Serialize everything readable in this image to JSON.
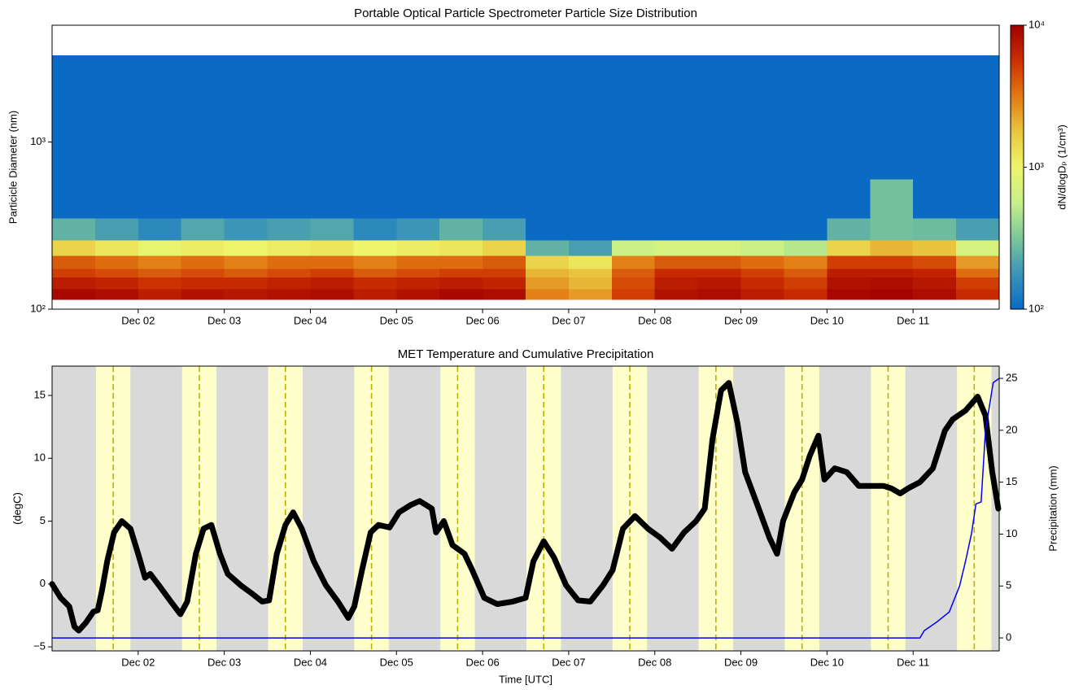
{
  "chart_data": [
    {
      "type": "heatmap",
      "title": "Portable Optical Particle Spectrometer Particle Size Distribution",
      "ylabel": "Particicle Diameter (nm)",
      "xlim": [
        1,
        12
      ],
      "xticks": [
        {
          "value": 2,
          "label": "Dec 02"
        },
        {
          "value": 3,
          "label": "Dec 03"
        },
        {
          "value": 4,
          "label": "Dec 04"
        },
        {
          "value": 5,
          "label": "Dec 05"
        },
        {
          "value": 6,
          "label": "Dec 06"
        },
        {
          "value": 7,
          "label": "Dec 07"
        },
        {
          "value": 8,
          "label": "Dec 08"
        },
        {
          "value": 9,
          "label": "Dec 09"
        },
        {
          "value": 10,
          "label": "Dec 10"
        },
        {
          "value": 11,
          "label": "Dec 11"
        }
      ],
      "yscale": "log",
      "ylim": [
        100,
        5000
      ],
      "yticks": [
        {
          "value": 100,
          "label": "10²"
        },
        {
          "value": 1000,
          "label": "10³"
        }
      ],
      "x_bins": [
        1,
        1.5,
        2,
        2.5,
        3,
        3.5,
        4,
        4.5,
        5,
        5.5,
        6,
        6.5,
        7,
        7.5,
        8,
        8.5,
        9,
        9.5,
        10,
        10.5,
        11,
        11.5,
        12
      ],
      "y_bins": [
        114,
        132,
        155,
        175,
        209,
        259,
        350,
        600,
        3300
      ],
      "values": [
        [
          9000,
          8500,
          7000,
          8000,
          7500,
          8000,
          8500,
          7000,
          8000,
          9000,
          8500,
          3000,
          2500,
          5000,
          8000,
          8500,
          7000,
          6000,
          9000,
          9500,
          8500,
          6000
        ],
        [
          7000,
          6500,
          5500,
          6000,
          6000,
          6500,
          7000,
          6000,
          6500,
          7000,
          6500,
          2500,
          2000,
          4500,
          7000,
          7500,
          6000,
          5000,
          8000,
          8500,
          7500,
          5000
        ],
        [
          5000,
          4500,
          4000,
          4500,
          4000,
          4500,
          5000,
          4000,
          4500,
          5000,
          5000,
          2000,
          1800,
          4000,
          6000,
          6000,
          5000,
          4000,
          7000,
          7000,
          6500,
          3500
        ],
        [
          4000,
          3500,
          3000,
          3500,
          3000,
          3500,
          3500,
          3000,
          3500,
          3500,
          4000,
          1500,
          1200,
          3000,
          4000,
          4000,
          3500,
          3000,
          5000,
          5000,
          4500,
          2500
        ],
        [
          1500,
          1200,
          900,
          1100,
          1000,
          1100,
          1200,
          1000,
          1100,
          1200,
          1500,
          250,
          200,
          600,
          700,
          700,
          600,
          500,
          1500,
          2000,
          1800,
          700
        ],
        [
          250,
          200,
          150,
          220,
          180,
          200,
          220,
          150,
          180,
          250,
          200,
          100,
          80,
          90,
          80,
          80,
          90,
          100,
          250,
          300,
          280,
          200
        ],
        [
          30,
          30,
          30,
          30,
          30,
          30,
          30,
          30,
          30,
          30,
          30,
          30,
          30,
          30,
          30,
          30,
          30,
          30,
          30,
          300,
          30,
          30
        ],
        [
          30,
          30,
          30,
          30,
          30,
          30,
          30,
          30,
          30,
          30,
          30,
          30,
          30,
          30,
          30,
          30,
          30,
          30,
          30,
          30,
          30,
          30
        ]
      ],
      "colorbar_label": "dN/dlogDₚ (1/cm³)",
      "cscale": "log",
      "clim": [
        100,
        10000
      ],
      "cticks": [
        {
          "value": 100,
          "label": "10²"
        },
        {
          "value": 1000,
          "label": "10³"
        },
        {
          "value": 10000,
          "label": "10⁴"
        }
      ],
      "colormap": [
        "#0a6ac4",
        "#3c94b8",
        "#7cc69a",
        "#c6ef8a",
        "#eef56a",
        "#e9c640",
        "#e27a14",
        "#cc2e00",
        "#a00000"
      ]
    },
    {
      "type": "line",
      "title": "MET Temperature and Cumulative Precipitation",
      "xlabel": "Time [UTC]",
      "ylabel": "(degC)",
      "y2label": "Precipitation (mm)",
      "xlim": [
        1,
        12
      ],
      "xticks": [
        {
          "value": 2,
          "label": "Dec 02"
        },
        {
          "value": 3,
          "label": "Dec 03"
        },
        {
          "value": 4,
          "label": "Dec 04"
        },
        {
          "value": 5,
          "label": "Dec 05"
        },
        {
          "value": 6,
          "label": "Dec 06"
        },
        {
          "value": 7,
          "label": "Dec 07"
        },
        {
          "value": 8,
          "label": "Dec 08"
        },
        {
          "value": 9,
          "label": "Dec 09"
        },
        {
          "value": 10,
          "label": "Dec 10"
        },
        {
          "value": 11,
          "label": "Dec 11"
        }
      ],
      "ylim": [
        -5.32,
        17.33
      ],
      "yticks": [
        {
          "value": -5,
          "label": "−5"
        },
        0,
        5,
        10,
        15
      ],
      "y2lim": [
        -1.25,
        26.18
      ],
      "y2ticks": [
        0,
        5,
        10,
        15,
        20,
        25
      ],
      "shading": {
        "night_color": "#d9d9d9",
        "day_color": "#ffffcc",
        "noon_color": "#bfb000",
        "day_spans": [
          [
            1.51,
            1.91
          ],
          [
            2.51,
            2.91
          ],
          [
            3.51,
            3.91
          ],
          [
            4.51,
            4.91
          ],
          [
            5.51,
            5.91
          ],
          [
            6.51,
            6.91
          ],
          [
            7.51,
            7.91
          ],
          [
            8.51,
            8.91
          ],
          [
            9.51,
            9.91
          ],
          [
            10.51,
            10.91
          ],
          [
            11.51,
            11.91
          ]
        ],
        "noon": [
          1.71,
          2.71,
          3.71,
          4.71,
          5.71,
          6.71,
          7.71,
          8.71,
          9.71,
          10.71,
          11.71
        ]
      },
      "series": [
        {
          "color": "#000000",
          "axis": "y",
          "x": [
            1.0,
            1.1,
            1.2,
            1.26,
            1.31,
            1.39,
            1.48,
            1.53,
            1.58,
            1.64,
            1.72,
            1.81,
            1.91,
            2.0,
            2.08,
            2.14,
            2.24,
            2.38,
            2.49,
            2.57,
            2.67,
            2.76,
            2.85,
            2.95,
            3.04,
            3.19,
            3.33,
            3.44,
            3.52,
            3.61,
            3.71,
            3.8,
            3.9,
            4.04,
            4.18,
            4.32,
            4.44,
            4.51,
            4.6,
            4.7,
            4.79,
            4.92,
            5.03,
            5.17,
            5.27,
            5.41,
            5.46,
            5.55,
            5.65,
            5.79,
            5.88,
            6.02,
            6.17,
            6.35,
            6.5,
            6.59,
            6.71,
            6.83,
            6.97,
            7.11,
            7.25,
            7.4,
            7.51,
            7.63,
            7.77,
            7.92,
            8.06,
            8.2,
            8.34,
            8.48,
            8.58,
            8.67,
            8.77,
            8.86,
            8.96,
            9.05,
            9.19,
            9.33,
            9.42,
            9.49,
            9.62,
            9.71,
            9.8,
            9.9,
            9.97,
            10.09,
            10.23,
            10.37,
            10.52,
            10.66,
            10.75,
            10.85,
            10.94,
            11.08,
            11.23,
            11.37,
            11.46,
            11.61,
            11.75,
            11.84,
            11.92,
            11.99
          ],
          "values": [
            0.0,
            -1.1,
            -1.8,
            -3.4,
            -3.7,
            -3.1,
            -2.2,
            -2.1,
            -0.5,
            1.8,
            4.1,
            5.0,
            4.4,
            2.4,
            0.5,
            0.8,
            -0.1,
            -1.4,
            -2.4,
            -1.4,
            2.4,
            4.4,
            4.7,
            2.4,
            0.8,
            -0.1,
            -0.8,
            -1.4,
            -1.3,
            2.4,
            4.7,
            5.7,
            4.4,
            1.8,
            -0.1,
            -1.4,
            -2.7,
            -1.8,
            1.1,
            4.1,
            4.7,
            4.5,
            5.7,
            6.3,
            6.6,
            6.0,
            4.1,
            5.0,
            3.1,
            2.4,
            1.1,
            -1.1,
            -1.6,
            -1.4,
            -1.1,
            1.8,
            3.4,
            2.1,
            -0.1,
            -1.3,
            -1.4,
            -0.1,
            1.1,
            4.4,
            5.4,
            4.4,
            3.7,
            2.8,
            4.1,
            5.0,
            6.0,
            11.5,
            15.4,
            16.0,
            12.8,
            8.9,
            6.3,
            3.7,
            2.4,
            5.0,
            7.3,
            8.3,
            10.2,
            11.8,
            8.3,
            9.2,
            8.9,
            7.8,
            7.8,
            7.8,
            7.6,
            7.2,
            7.6,
            8.1,
            9.2,
            12.2,
            13.1,
            13.8,
            14.9,
            13.4,
            8.9,
            6.0
          ]
        },
        {
          "color": "#0000ff",
          "axis": "y2",
          "x": [
            1.0,
            11.08,
            11.13,
            11.27,
            11.42,
            11.54,
            11.61,
            11.68,
            11.73,
            11.79,
            11.84,
            11.93,
            12.0
          ],
          "values": [
            0,
            0,
            0.7,
            1.5,
            2.5,
            5.0,
            7.4,
            10.1,
            12.9,
            13.1,
            19.9,
            24.6,
            25.0
          ]
        }
      ]
    }
  ]
}
